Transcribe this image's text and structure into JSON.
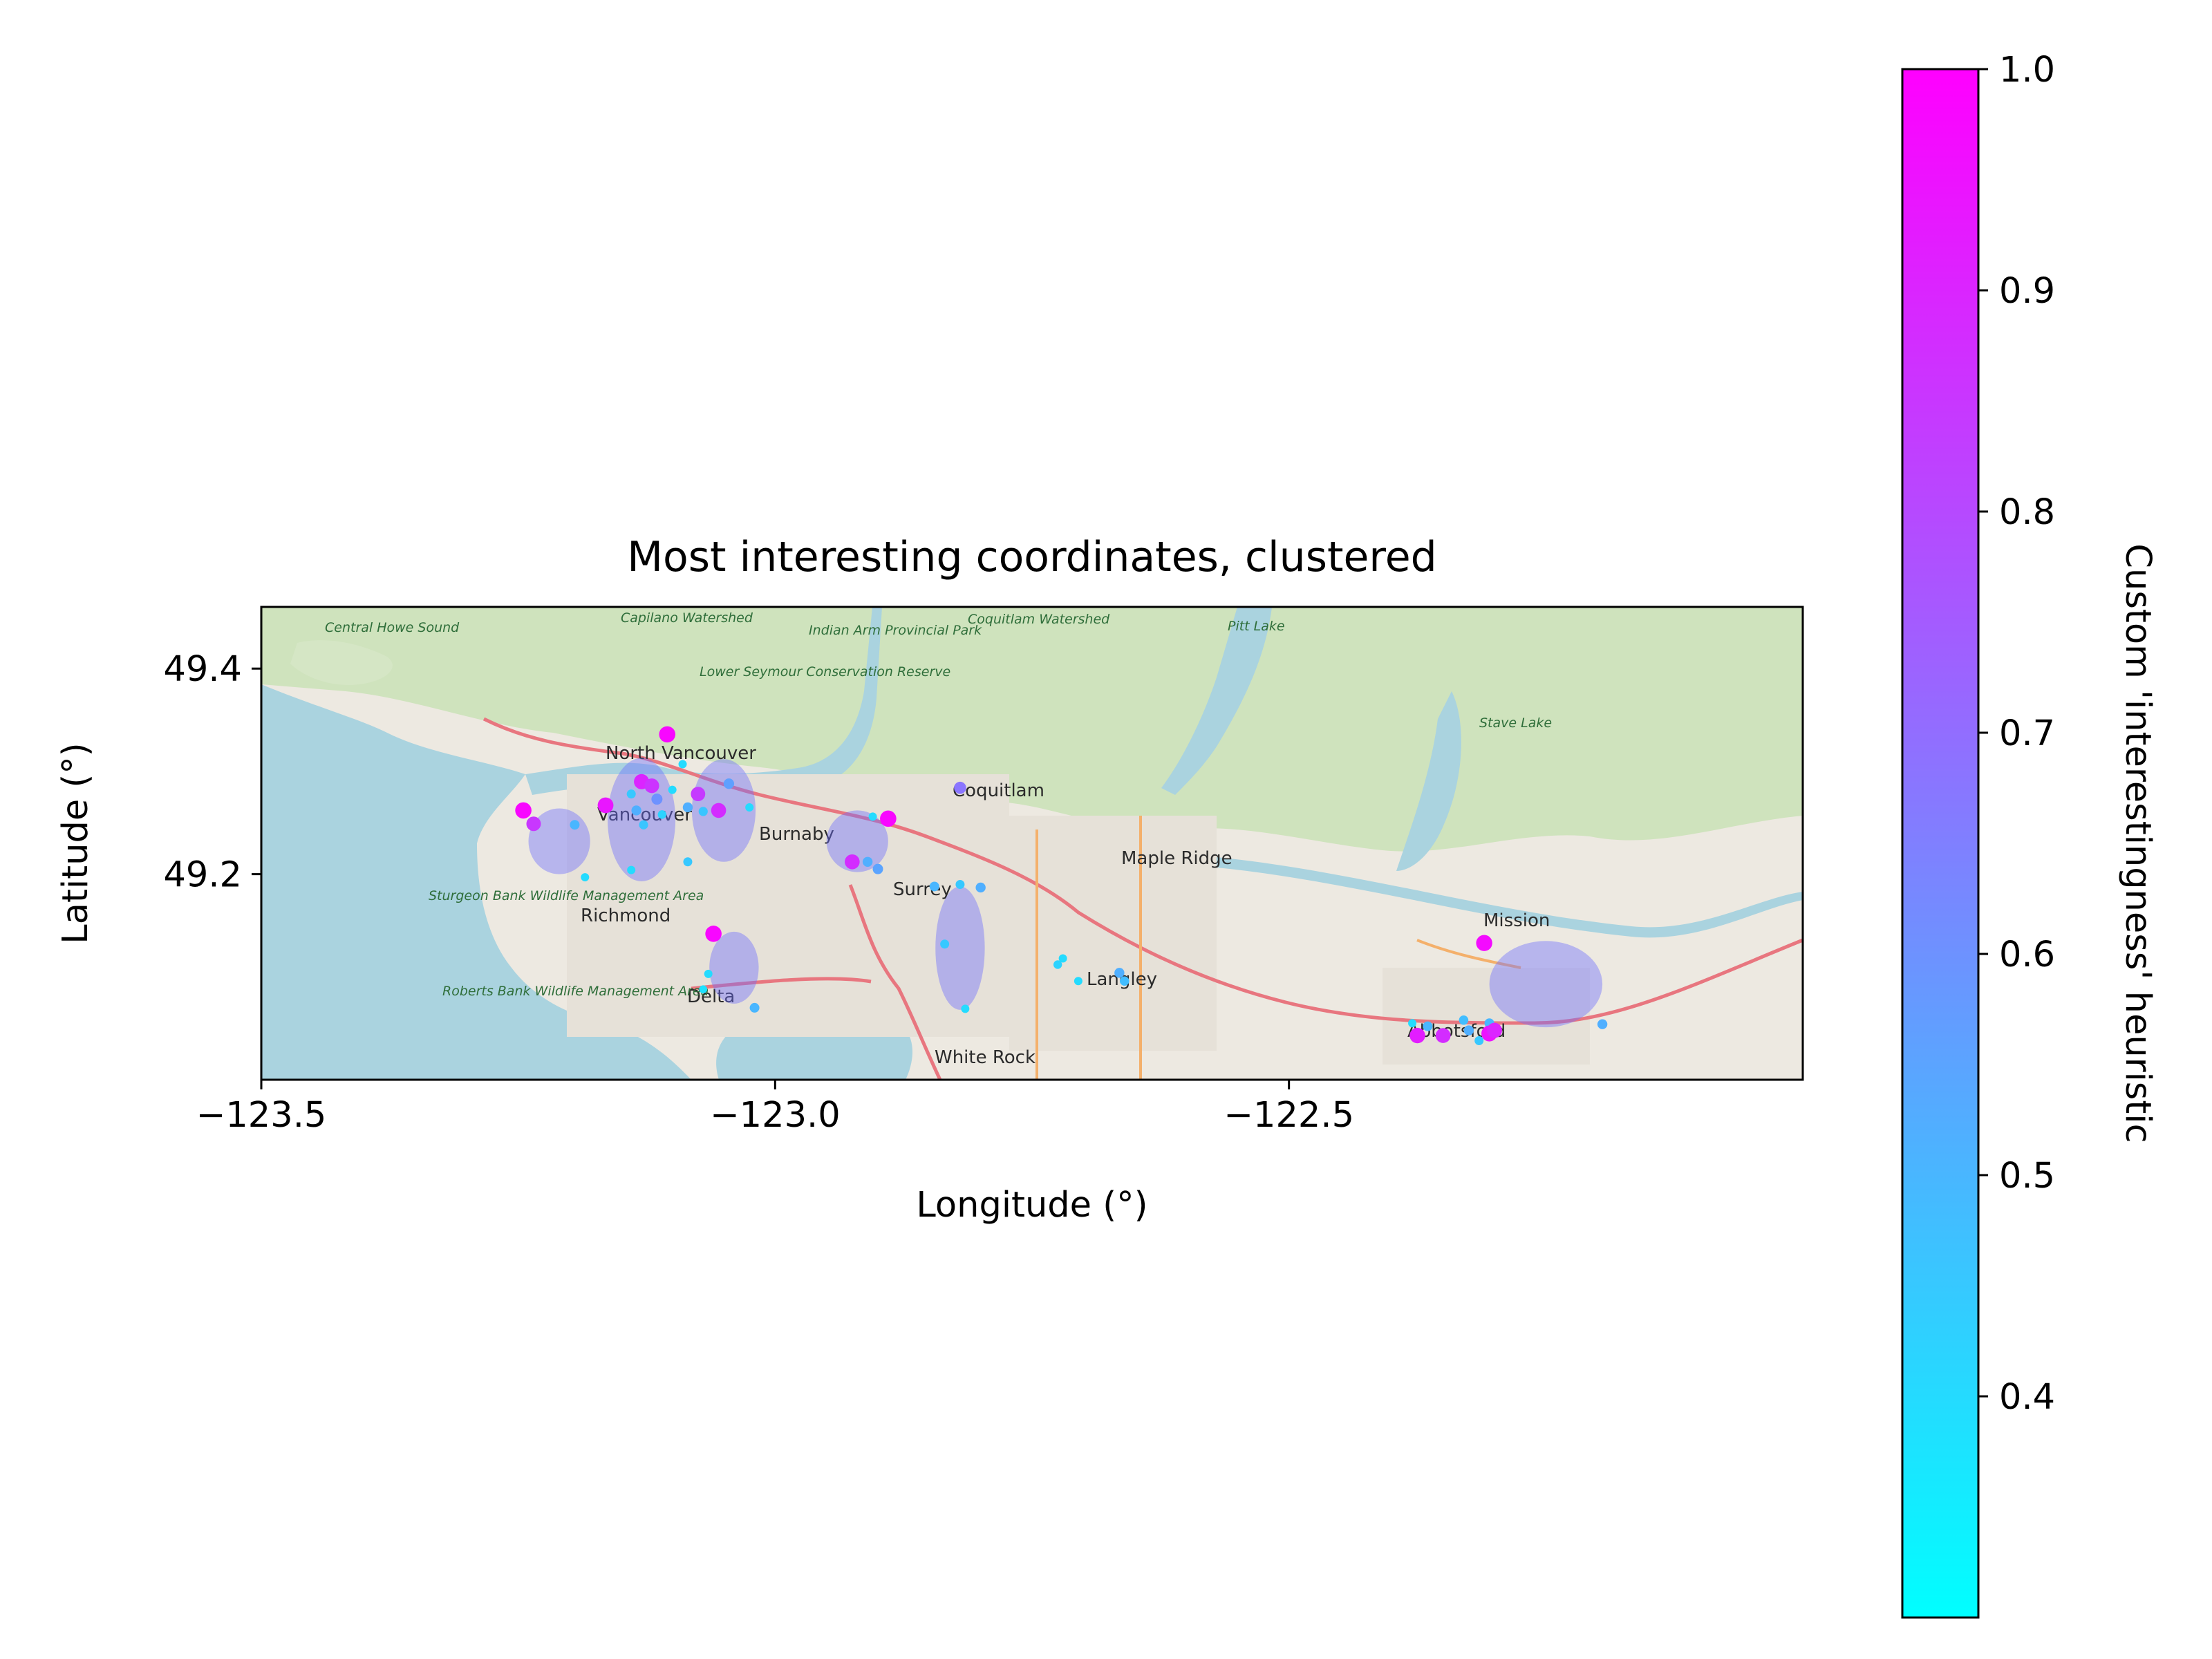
{
  "chart_data": {
    "type": "scatter",
    "title": "Most interesting coordinates, clustered",
    "xlabel": "Longitude (°)",
    "ylabel": "Latitude (°)",
    "xlim": [
      -123.5,
      -122.0
    ],
    "ylim": [
      49.0,
      49.46
    ],
    "xticks": [
      "−123.5",
      "−123.0",
      "−122.5"
    ],
    "xtick_values": [
      -123.5,
      -123.0,
      -122.5
    ],
    "yticks": [
      "49.2",
      "49.4"
    ],
    "ytick_values": [
      49.2,
      49.4
    ],
    "colorbar": {
      "label": "Custom 'interestingness' heuristic",
      "colormap": "cool",
      "range": [
        0.3,
        1.0
      ],
      "ticks": [
        "0.4",
        "0.5",
        "0.6",
        "0.7",
        "0.8",
        "0.9",
        "1.0"
      ],
      "tick_values": [
        0.4,
        0.5,
        0.6,
        0.7,
        0.8,
        0.9,
        1.0
      ]
    },
    "basemap_labels": [
      "North Vancouver",
      "Vancouver",
      "Burnaby",
      "Coquitlam",
      "Maple Ridge",
      "Surrey",
      "Richmond",
      "Delta",
      "Langley",
      "Mission",
      "Abbotsford",
      "White Rock",
      "Central Howe Sound",
      "Lower Seymour Conservation Reserve",
      "Coquitlam Watershed",
      "Indian Arm Provincial Park",
      "Pitt Lake",
      "Stave Lake",
      "Sturgeon Bank Wildlife Management Area",
      "Roberts Bank Wildlife Management Area",
      "Capilano Watershed"
    ],
    "clusters": [
      {
        "lon": -123.21,
        "lat": 49.232,
        "rx": 0.03,
        "ry": 0.032
      },
      {
        "lon": -123.13,
        "lat": 49.253,
        "rx": 0.033,
        "ry": 0.06
      },
      {
        "lon": -123.05,
        "lat": 49.262,
        "rx": 0.031,
        "ry": 0.05
      },
      {
        "lon": -122.92,
        "lat": 49.232,
        "rx": 0.03,
        "ry": 0.03
      },
      {
        "lon": -123.04,
        "lat": 49.109,
        "rx": 0.024,
        "ry": 0.035
      },
      {
        "lon": -122.82,
        "lat": 49.128,
        "rx": 0.024,
        "ry": 0.06
      },
      {
        "lon": -122.25,
        "lat": 49.093,
        "rx": 0.055,
        "ry": 0.042
      }
    ],
    "points": [
      {
        "lon": -123.245,
        "lat": 49.262,
        "v": 0.98
      },
      {
        "lon": -123.235,
        "lat": 49.249,
        "v": 0.85
      },
      {
        "lon": -123.195,
        "lat": 49.248,
        "v": 0.5
      },
      {
        "lon": -123.185,
        "lat": 49.197,
        "v": 0.4
      },
      {
        "lon": -123.165,
        "lat": 49.267,
        "v": 0.94
      },
      {
        "lon": -123.14,
        "lat": 49.278,
        "v": 0.45
      },
      {
        "lon": -123.135,
        "lat": 49.262,
        "v": 0.52
      },
      {
        "lon": -123.13,
        "lat": 49.29,
        "v": 0.9
      },
      {
        "lon": -123.12,
        "lat": 49.286,
        "v": 0.86
      },
      {
        "lon": -123.115,
        "lat": 49.273,
        "v": 0.6
      },
      {
        "lon": -123.128,
        "lat": 49.248,
        "v": 0.46
      },
      {
        "lon": -123.11,
        "lat": 49.258,
        "v": 0.42
      },
      {
        "lon": -123.1,
        "lat": 49.282,
        "v": 0.4
      },
      {
        "lon": -123.105,
        "lat": 49.336,
        "v": 0.98
      },
      {
        "lon": -123.09,
        "lat": 49.307,
        "v": 0.4
      },
      {
        "lon": -123.085,
        "lat": 49.265,
        "v": 0.52
      },
      {
        "lon": -123.075,
        "lat": 49.278,
        "v": 0.84
      },
      {
        "lon": -123.07,
        "lat": 49.261,
        "v": 0.46
      },
      {
        "lon": -123.055,
        "lat": 49.262,
        "v": 0.88
      },
      {
        "lon": -123.045,
        "lat": 49.288,
        "v": 0.56
      },
      {
        "lon": -123.025,
        "lat": 49.265,
        "v": 0.4
      },
      {
        "lon": -123.14,
        "lat": 49.204,
        "v": 0.4
      },
      {
        "lon": -123.085,
        "lat": 49.212,
        "v": 0.45
      },
      {
        "lon": -123.06,
        "lat": 49.142,
        "v": 0.98
      },
      {
        "lon": -123.065,
        "lat": 49.103,
        "v": 0.4
      },
      {
        "lon": -123.07,
        "lat": 49.088,
        "v": 0.38
      },
      {
        "lon": -123.02,
        "lat": 49.07,
        "v": 0.5
      },
      {
        "lon": -122.925,
        "lat": 49.212,
        "v": 0.88
      },
      {
        "lon": -122.91,
        "lat": 49.212,
        "v": 0.52
      },
      {
        "lon": -122.905,
        "lat": 49.256,
        "v": 0.4
      },
      {
        "lon": -122.89,
        "lat": 49.254,
        "v": 0.98
      },
      {
        "lon": -122.9,
        "lat": 49.205,
        "v": 0.55
      },
      {
        "lon": -122.82,
        "lat": 49.284,
        "v": 0.68
      },
      {
        "lon": -122.845,
        "lat": 49.188,
        "v": 0.5
      },
      {
        "lon": -122.82,
        "lat": 49.19,
        "v": 0.45
      },
      {
        "lon": -122.8,
        "lat": 49.187,
        "v": 0.52
      },
      {
        "lon": -122.835,
        "lat": 49.132,
        "v": 0.45
      },
      {
        "lon": -122.815,
        "lat": 49.069,
        "v": 0.4
      },
      {
        "lon": -122.72,
        "lat": 49.118,
        "v": 0.4
      },
      {
        "lon": -122.725,
        "lat": 49.112,
        "v": 0.42
      },
      {
        "lon": -122.705,
        "lat": 49.096,
        "v": 0.4
      },
      {
        "lon": -122.665,
        "lat": 49.104,
        "v": 0.52
      },
      {
        "lon": -122.66,
        "lat": 49.096,
        "v": 0.48
      },
      {
        "lon": -122.38,
        "lat": 49.055,
        "v": 0.4
      },
      {
        "lon": -122.375,
        "lat": 49.043,
        "v": 0.92
      },
      {
        "lon": -122.365,
        "lat": 49.052,
        "v": 0.5
      },
      {
        "lon": -122.35,
        "lat": 49.043,
        "v": 0.88
      },
      {
        "lon": -122.33,
        "lat": 49.058,
        "v": 0.48
      },
      {
        "lon": -122.325,
        "lat": 49.048,
        "v": 0.52
      },
      {
        "lon": -122.315,
        "lat": 49.038,
        "v": 0.45
      },
      {
        "lon": -122.305,
        "lat": 49.055,
        "v": 0.5
      },
      {
        "lon": -122.305,
        "lat": 49.045,
        "v": 0.95
      },
      {
        "lon": -122.3,
        "lat": 49.048,
        "v": 0.9
      },
      {
        "lon": -122.31,
        "lat": 49.133,
        "v": 0.97
      },
      {
        "lon": -122.195,
        "lat": 49.054,
        "v": 0.52
      }
    ]
  }
}
